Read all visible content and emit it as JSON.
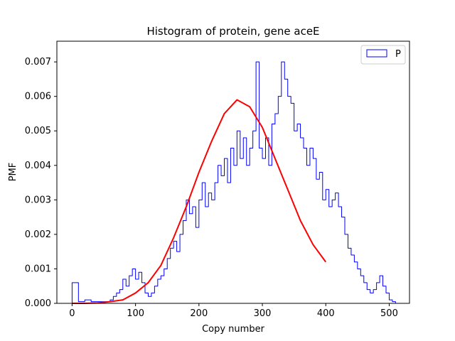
{
  "chart_data": {
    "type": "histogram",
    "title": "Histogram of protein, gene aceE",
    "xlabel": "Copy number",
    "ylabel": "PMF",
    "xlim": [
      -24,
      532
    ],
    "ylim": [
      0,
      0.0076
    ],
    "x_ticks": [
      0,
      100,
      200,
      300,
      400,
      500
    ],
    "x_tick_labels": [
      "0",
      "100",
      "200",
      "300",
      "400",
      "500"
    ],
    "y_ticks": [
      0,
      0.001,
      0.002,
      0.003,
      0.004,
      0.005,
      0.006,
      0.007
    ],
    "y_tick_labels": [
      "0.000",
      "0.001",
      "0.002",
      "0.003",
      "0.004",
      "0.005",
      "0.006",
      "0.007"
    ],
    "grid": false,
    "legend": {
      "position": "top-right",
      "entries": [
        {
          "name": "P",
          "color": "#0000ff",
          "style": "step-outline"
        }
      ]
    },
    "series": [
      {
        "name": "P",
        "kind": "step",
        "color": "#0000ff",
        "x": [
          0,
          10,
          20,
          30,
          40,
          50,
          60,
          65,
          70,
          75,
          80,
          85,
          90,
          95,
          100,
          105,
          110,
          115,
          120,
          125,
          130,
          135,
          140,
          145,
          150,
          155,
          160,
          165,
          170,
          175,
          180,
          185,
          190,
          195,
          200,
          205,
          210,
          215,
          220,
          225,
          230,
          235,
          240,
          245,
          250,
          255,
          260,
          265,
          270,
          275,
          280,
          285,
          290,
          295,
          300,
          305,
          310,
          315,
          320,
          325,
          330,
          335,
          340,
          345,
          350,
          355,
          360,
          365,
          370,
          375,
          380,
          385,
          390,
          395,
          400,
          405,
          410,
          415,
          420,
          425,
          430,
          435,
          440,
          445,
          450,
          455,
          460,
          465,
          470,
          475,
          480,
          485,
          490,
          495,
          500,
          505
        ],
        "y": [
          0.0006,
          5e-05,
          0.0001,
          5e-05,
          5e-05,
          5e-05,
          0.0001,
          0.0002,
          0.0003,
          0.0004,
          0.0007,
          0.0005,
          0.0008,
          0.001,
          0.0007,
          0.0009,
          0.0006,
          0.0003,
          0.0002,
          0.0003,
          0.0005,
          0.0007,
          0.0008,
          0.001,
          0.0013,
          0.0016,
          0.0018,
          0.0015,
          0.002,
          0.0024,
          0.003,
          0.0026,
          0.0028,
          0.0022,
          0.003,
          0.0035,
          0.0028,
          0.0032,
          0.003,
          0.0035,
          0.004,
          0.0037,
          0.0042,
          0.0035,
          0.0045,
          0.004,
          0.005,
          0.0042,
          0.0048,
          0.004,
          0.0045,
          0.005,
          0.007,
          0.0045,
          0.0042,
          0.0048,
          0.004,
          0.0052,
          0.0055,
          0.006,
          0.007,
          0.0065,
          0.006,
          0.0058,
          0.005,
          0.0052,
          0.0048,
          0.0045,
          0.004,
          0.0045,
          0.0042,
          0.0036,
          0.0038,
          0.003,
          0.0033,
          0.0028,
          0.003,
          0.0032,
          0.0028,
          0.0025,
          0.002,
          0.0016,
          0.0014,
          0.0012,
          0.001,
          0.0008,
          0.0006,
          0.0004,
          0.0003,
          0.0004,
          0.0006,
          0.0008,
          0.0005,
          0.0003,
          0.0001,
          5e-05
        ]
      },
      {
        "name": "",
        "kind": "line",
        "color": "#ff0000",
        "x": [
          0,
          20,
          40,
          60,
          80,
          100,
          120,
          140,
          160,
          180,
          200,
          220,
          240,
          260,
          280,
          300,
          320,
          340,
          360,
          380,
          400
        ],
        "y": [
          0,
          0,
          1e-05,
          5e-05,
          0.0001,
          0.0003,
          0.0006,
          0.0011,
          0.0019,
          0.0028,
          0.0038,
          0.0047,
          0.0055,
          0.0059,
          0.0057,
          0.0051,
          0.0042,
          0.0033,
          0.0024,
          0.0017,
          0.0012
        ]
      }
    ]
  }
}
